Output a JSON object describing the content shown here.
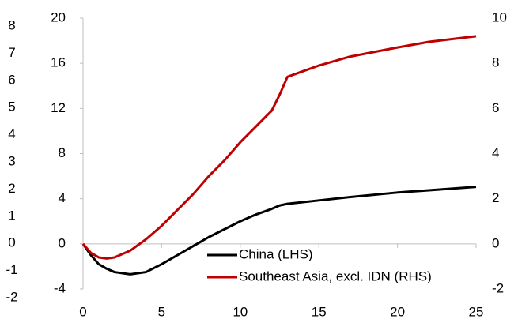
{
  "chart_data": [
    {
      "type": "line",
      "x": [
        0,
        0.5,
        1,
        1.5,
        2,
        3,
        4,
        5,
        6,
        7,
        8,
        9,
        10,
        11,
        12,
        12.5,
        13,
        15,
        17,
        20,
        22,
        25
      ],
      "series": [
        {
          "name": "China (LHS)",
          "color": "#000000",
          "values": [
            0,
            -1,
            -1.8,
            -2.2,
            -2.5,
            -2.7,
            -2.5,
            -1.8,
            -1,
            -0.2,
            0.6,
            1.3,
            2,
            2.6,
            3.1,
            3.4,
            3.55,
            3.85,
            4.15,
            4.55,
            4.75,
            5.05
          ]
        },
        {
          "name": "Southeast Asia, excl. IDN (RHS)",
          "color": "#c00000",
          "axis": "y2",
          "values": [
            0,
            -0.4,
            -0.6,
            -0.65,
            -0.6,
            -0.3,
            0.2,
            0.8,
            1.5,
            2.2,
            3,
            3.7,
            4.5,
            5.2,
            5.9,
            6.6,
            7.4,
            7.9,
            8.3,
            8.7,
            8.95,
            9.2
          ]
        }
      ],
      "xlim": [
        0,
        25
      ],
      "xticks": [
        0,
        5,
        10,
        15,
        20,
        25
      ],
      "ylim": [
        -4,
        20
      ],
      "yticks": [
        -4,
        0,
        4,
        8,
        12,
        16,
        20
      ],
      "y2lim": [
        -2,
        10
      ],
      "y2ticks": [
        -2,
        0,
        2,
        4,
        6,
        8,
        10
      ],
      "legend": "lower-right"
    },
    {
      "type": "fragment",
      "ylim": [
        -2,
        8
      ],
      "yticks": [
        -2,
        -1,
        0,
        1,
        2,
        3,
        4,
        5,
        6,
        7,
        8
      ]
    }
  ]
}
